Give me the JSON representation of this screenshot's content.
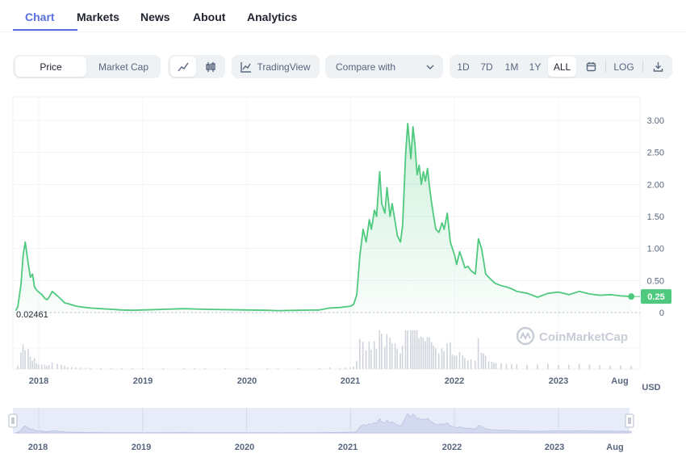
{
  "tabs": [
    {
      "label": "Chart",
      "active": true
    },
    {
      "label": "Markets"
    },
    {
      "label": "News"
    },
    {
      "label": "About"
    },
    {
      "label": "Analytics"
    }
  ],
  "toolbar": {
    "price_label": "Price",
    "market_cap_label": "Market Cap",
    "line_icon": "line-chart-icon",
    "candle_icon": "candlestick-icon",
    "tradingview_label": "TradingView",
    "compare_label": "Compare with",
    "ranges": [
      "1D",
      "7D",
      "1M",
      "1Y",
      "ALL"
    ],
    "active_range": "ALL",
    "calendar_icon": "calendar-icon",
    "log_label": "LOG",
    "download_icon": "download-icon"
  },
  "watermark": "CoinMarketCap",
  "colors": {
    "line": "#4ec97e",
    "accent": "#5b6ee1",
    "current_badge": "#4ec97e",
    "volume": "#cfd3dc",
    "navigator_fill": "#e6eaf7"
  },
  "chart_data": {
    "type": "area",
    "currency_label": "USD",
    "start_price_label": "0.02461",
    "current_price_label": "0.25",
    "y_ticks": [
      "3.00",
      "2.50",
      "2.00",
      "1.50",
      "1.00",
      "0.50",
      "0"
    ],
    "ylim": [
      0,
      3.3
    ],
    "x_labels": [
      "2018",
      "2019",
      "2020",
      "2021",
      "2022",
      "2023",
      "Aug"
    ],
    "navigator_labels": [
      "2018",
      "2019",
      "2020",
      "2021",
      "2022",
      "2023",
      "Aug"
    ],
    "grid": true,
    "series": [
      {
        "x": [
          2017.78,
          2017.8,
          2017.83,
          2017.85,
          2017.87,
          2017.9,
          2017.92,
          2017.94,
          2017.96,
          2017.98,
          2018.0,
          2018.03,
          2018.06,
          2018.08,
          2018.1,
          2018.13,
          2018.18,
          2018.22,
          2018.25,
          2018.28,
          2018.32,
          2018.36,
          2018.4,
          2018.45,
          2018.5,
          2018.6,
          2018.7,
          2018.8,
          2018.9,
          2019.0,
          2019.2,
          2019.4,
          2019.5,
          2019.6,
          2019.8,
          2020.0,
          2020.2,
          2020.3,
          2020.5,
          2020.7,
          2020.8,
          2020.9,
          2020.95,
          2021.0,
          2021.03,
          2021.06,
          2021.09,
          2021.12,
          2021.15,
          2021.18,
          2021.2,
          2021.23,
          2021.25,
          2021.28,
          2021.3,
          2021.33,
          2021.35,
          2021.38,
          2021.4,
          2021.43,
          2021.45,
          2021.48,
          2021.5,
          2021.53,
          2021.55,
          2021.58,
          2021.6,
          2021.62,
          2021.64,
          2021.66,
          2021.68,
          2021.7,
          2021.72,
          2021.74,
          2021.76,
          2021.78,
          2021.8,
          2021.82,
          2021.85,
          2021.88,
          2021.9,
          2021.93,
          2021.96,
          2021.98,
          2022.0,
          2022.02,
          2022.05,
          2022.08,
          2022.1,
          2022.13,
          2022.16,
          2022.2,
          2022.23,
          2022.26,
          2022.28,
          2022.3,
          2022.33,
          2022.36,
          2022.38,
          2022.4,
          2022.45,
          2022.5,
          2022.55,
          2022.6,
          2022.7,
          2022.8,
          2022.9,
          2023.0,
          2023.1,
          2023.2,
          2023.3,
          2023.4,
          2023.5,
          2023.6,
          2023.7
        ],
        "y": [
          0.03,
          0.1,
          0.45,
          0.9,
          1.1,
          0.75,
          0.55,
          0.6,
          0.4,
          0.35,
          0.32,
          0.28,
          0.22,
          0.2,
          0.24,
          0.33,
          0.26,
          0.2,
          0.15,
          0.14,
          0.12,
          0.1,
          0.09,
          0.08,
          0.07,
          0.06,
          0.05,
          0.04,
          0.035,
          0.04,
          0.05,
          0.06,
          0.055,
          0.05,
          0.045,
          0.04,
          0.035,
          0.03,
          0.035,
          0.04,
          0.07,
          0.08,
          0.09,
          0.1,
          0.13,
          0.28,
          0.9,
          1.3,
          1.1,
          1.45,
          1.3,
          1.6,
          1.5,
          2.2,
          1.7,
          1.55,
          1.95,
          1.5,
          1.7,
          1.4,
          1.2,
          1.1,
          1.35,
          2.5,
          2.95,
          2.4,
          2.9,
          2.6,
          2.15,
          2.3,
          2.0,
          2.2,
          2.05,
          2.25,
          1.95,
          1.7,
          1.5,
          1.3,
          1.25,
          1.4,
          1.3,
          1.55,
          1.1,
          1.0,
          0.9,
          0.75,
          0.95,
          0.8,
          0.7,
          0.72,
          0.65,
          0.6,
          1.15,
          1.0,
          0.8,
          0.6,
          0.55,
          0.5,
          0.47,
          0.45,
          0.42,
          0.4,
          0.37,
          0.33,
          0.3,
          0.24,
          0.3,
          0.32,
          0.28,
          0.33,
          0.29,
          0.27,
          0.28,
          0.26,
          0.25
        ]
      }
    ]
  }
}
